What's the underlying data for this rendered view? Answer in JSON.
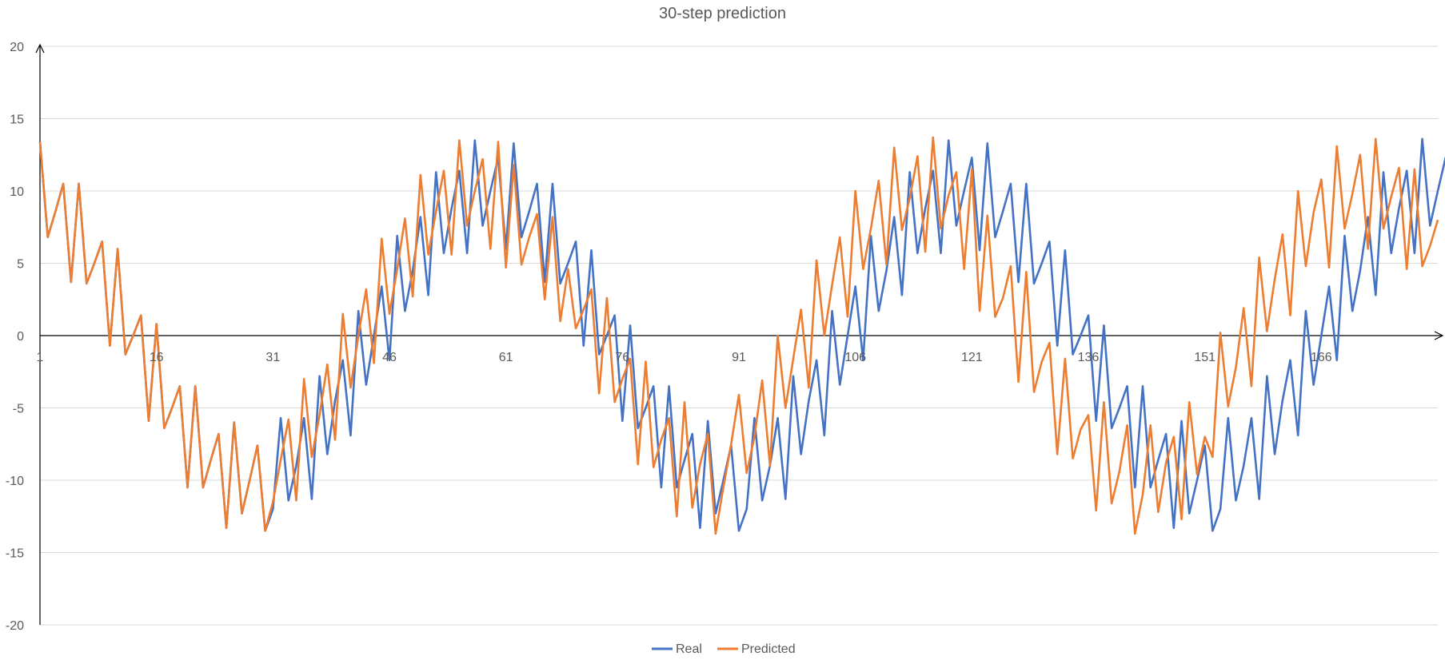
{
  "chart_data": {
    "type": "line",
    "title": "30-step prediction",
    "xlabel": "",
    "ylabel": "",
    "ylim": [
      -20,
      20
    ],
    "yticks": [
      20,
      15,
      10,
      5,
      0,
      -5,
      -10,
      -15,
      -20
    ],
    "xticks": [
      1,
      16,
      31,
      46,
      61,
      76,
      91,
      106,
      121,
      136,
      151,
      166
    ],
    "x_range": [
      1,
      181
    ],
    "grid": true,
    "legend": "bottom",
    "series": [
      {
        "name": "Real",
        "color": "#4472C4",
        "values": [
          13.4,
          6.8,
          8.6,
          10.5,
          3.7,
          10.5,
          3.6,
          5.0,
          6.5,
          -0.7,
          6.0,
          -1.3,
          0.0,
          1.4,
          -5.9,
          0.8,
          -6.4,
          -5.0,
          -3.5,
          -10.5,
          -3.5,
          -10.5,
          -8.6,
          -6.8,
          -13.3,
          -6.0,
          -12.3,
          -10.0,
          -7.6,
          -13.5,
          -12.0,
          -5.7,
          -11.4,
          -9.0,
          -5.7,
          -11.3,
          -2.8,
          -8.2,
          -4.5,
          -1.7,
          -6.9,
          1.7,
          -3.4,
          0.0,
          3.4,
          -1.7,
          6.9,
          1.7,
          4.5,
          8.2,
          2.8,
          11.3,
          5.7,
          8.8,
          11.4,
          5.7,
          13.5,
          7.6,
          10.0,
          12.3,
          6.0,
          13.3,
          6.8,
          8.6,
          10.5,
          3.7,
          10.5,
          3.6,
          5.0,
          6.5,
          -0.7,
          5.9,
          -1.3,
          0.0,
          1.4,
          -5.9,
          0.7,
          -6.4,
          -5.0,
          -3.5,
          -10.5,
          -3.5,
          -10.5,
          -8.6,
          -6.8,
          -13.3,
          -5.9,
          -12.3,
          -10.0,
          -7.6,
          -13.5,
          -12.0,
          -5.7,
          -11.4,
          -9.0,
          -5.7,
          -11.3,
          -2.8,
          -8.2,
          -4.5,
          -1.7,
          -6.9,
          1.7,
          -3.4,
          0.0,
          3.4,
          -1.7,
          6.9,
          1.7,
          4.5,
          8.2,
          2.8,
          11.3,
          5.7,
          8.8,
          11.4,
          5.7,
          13.5,
          7.6,
          10.0,
          12.3,
          5.9,
          13.3,
          6.8,
          8.6,
          10.5,
          3.7,
          10.5,
          3.6,
          5.0,
          6.5,
          -0.7,
          5.9,
          -1.3,
          0.0,
          1.4,
          -5.9,
          0.7,
          -6.4,
          -5.0,
          -3.5,
          -10.5,
          -3.5,
          -10.5,
          -8.6,
          -6.8,
          -13.3,
          -5.9,
          -12.3,
          -10.0,
          -7.6,
          -13.5,
          -12.0,
          -5.7,
          -11.4,
          -9.0,
          -5.7,
          -11.3,
          -2.8,
          -8.2,
          -4.5,
          -1.7,
          -6.9,
          1.7,
          -3.4,
          0.0,
          3.4,
          -1.7,
          6.9,
          1.7,
          4.5,
          8.2,
          2.8,
          11.3,
          5.7,
          8.8,
          11.4,
          5.7,
          13.6,
          7.6,
          10.0,
          12.3,
          6.0
        ]
      },
      {
        "name": "Predicted",
        "color": "#ED7D31",
        "values": [
          13.4,
          6.8,
          8.6,
          10.5,
          3.7,
          10.5,
          3.6,
          5.0,
          6.5,
          -0.7,
          6.0,
          -1.3,
          0.0,
          1.4,
          -5.9,
          0.8,
          -6.4,
          -5.0,
          -3.5,
          -10.5,
          -3.5,
          -10.5,
          -8.6,
          -6.8,
          -13.3,
          -6.0,
          -12.3,
          -10.0,
          -7.6,
          -13.5,
          -11.5,
          -8.6,
          -5.8,
          -11.4,
          -3.0,
          -8.4,
          -5.5,
          -2.0,
          -7.2,
          1.5,
          -3.6,
          0.0,
          3.2,
          -1.9,
          6.7,
          1.5,
          4.6,
          8.1,
          2.7,
          11.1,
          5.6,
          8.6,
          11.4,
          5.6,
          13.5,
          7.6,
          10.0,
          12.2,
          6.0,
          13.4,
          4.7,
          11.8,
          4.9,
          6.8,
          8.4,
          2.5,
          8.2,
          1.0,
          4.6,
          0.5,
          1.8,
          3.2,
          -4.0,
          2.6,
          -4.6,
          -3.0,
          -1.6,
          -8.9,
          -1.8,
          -9.1,
          -7.2,
          -5.7,
          -12.5,
          -4.6,
          -11.9,
          -8.9,
          -6.8,
          -13.7,
          -10.5,
          -7.5,
          -4.1,
          -9.5,
          -7.0,
          -3.1,
          -9.0,
          0.0,
          -5.0,
          -1.6,
          1.8,
          -3.6,
          5.2,
          0.0,
          3.5,
          6.8,
          1.3,
          10.0,
          4.6,
          7.4,
          10.7,
          4.9,
          13.0,
          7.3,
          9.5,
          12.4,
          5.8,
          13.7,
          7.4,
          9.7,
          11.3,
          4.6,
          11.5,
          1.7,
          8.3,
          1.3,
          2.6,
          4.8,
          -3.2,
          4.4,
          -3.9,
          -1.8,
          -0.5,
          -8.2,
          -1.6,
          -8.5,
          -6.5,
          -5.5,
          -12.1,
          -4.6,
          -11.6,
          -9.4,
          -6.2,
          -13.7,
          -11.0,
          -6.2,
          -12.2,
          -8.8,
          -7.0,
          -12.7,
          -4.6,
          -9.6,
          -7.0,
          -8.4,
          0.2,
          -4.9,
          -2.2,
          1.9,
          -3.5,
          5.4,
          0.3,
          3.9,
          7.0,
          1.4,
          10.0,
          4.8,
          8.5,
          10.8,
          4.7,
          13.1,
          7.4,
          9.8,
          12.5,
          6.0,
          13.6,
          7.4,
          9.6,
          11.6,
          4.6,
          11.5,
          4.8,
          6.2,
          8.0
        ]
      }
    ]
  }
}
